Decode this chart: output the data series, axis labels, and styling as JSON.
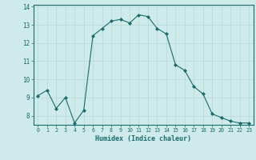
{
  "x": [
    0,
    1,
    2,
    3,
    4,
    5,
    6,
    7,
    8,
    9,
    10,
    11,
    12,
    13,
    14,
    15,
    16,
    17,
    18,
    19,
    20,
    21,
    22,
    23
  ],
  "y": [
    9.1,
    9.4,
    8.4,
    9.0,
    7.6,
    8.3,
    12.4,
    12.8,
    13.2,
    13.3,
    13.1,
    13.55,
    13.45,
    12.8,
    12.5,
    10.8,
    10.5,
    9.6,
    9.2,
    8.1,
    7.9,
    7.7,
    7.6,
    7.6
  ],
  "line_color": "#1a6b6b",
  "marker": "D",
  "marker_size": 2.0,
  "bg_color": "#ceeaea",
  "grid_color": "#b8d8d8",
  "xlabel": "Humidex (Indice chaleur)",
  "xlim": [
    -0.5,
    23.5
  ],
  "ylim": [
    7.5,
    14.1
  ],
  "yticks": [
    8,
    9,
    10,
    11,
    12,
    13,
    14
  ],
  "xticks": [
    0,
    1,
    2,
    3,
    4,
    5,
    6,
    7,
    8,
    9,
    10,
    11,
    12,
    13,
    14,
    15,
    16,
    17,
    18,
    19,
    20,
    21,
    22,
    23
  ],
  "axis_color": "#1a6b6b",
  "tick_color": "#1a6b6b",
  "label_color": "#1a6b6b"
}
